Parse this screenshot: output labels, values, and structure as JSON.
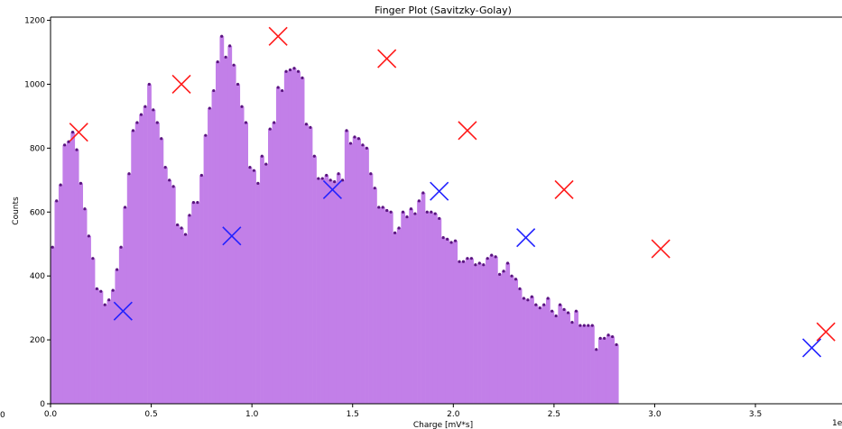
{
  "chart_data": {
    "type": "bar",
    "title": "Finger Plot (Savitzky-Golay)",
    "xlabel": "Charge [mV*s]",
    "ylabel": "Counts",
    "x_offset_label": "1e",
    "stray_label": "0",
    "xlim": [
      0.0,
      3.93
    ],
    "ylim": [
      0,
      1210
    ],
    "grid": false,
    "x_ticks": [
      {
        "value": 0.0,
        "label": "0.0"
      },
      {
        "value": 0.5,
        "label": "0.5"
      },
      {
        "value": 1.0,
        "label": "1.0"
      },
      {
        "value": 1.5,
        "label": "1.5"
      },
      {
        "value": 2.0,
        "label": "2.0"
      },
      {
        "value": 2.5,
        "label": "2.5"
      },
      {
        "value": 3.0,
        "label": "3.0"
      },
      {
        "value": 3.5,
        "label": "3.5"
      }
    ],
    "y_ticks": [
      {
        "value": 0,
        "label": "0"
      },
      {
        "value": 200,
        "label": "200"
      },
      {
        "value": 400,
        "label": "400"
      },
      {
        "value": 600,
        "label": "600"
      },
      {
        "value": 800,
        "label": "800"
      },
      {
        "value": 1000,
        "label": "1000"
      },
      {
        "value": 1200,
        "label": "1200"
      }
    ],
    "bin_width": 0.02,
    "bin_start": 0.0,
    "values": [
      490,
      635,
      685,
      810,
      820,
      850,
      795,
      690,
      610,
      525,
      455,
      360,
      352,
      310,
      325,
      355,
      420,
      490,
      615,
      720,
      855,
      880,
      905,
      930,
      1000,
      920,
      880,
      830,
      740,
      700,
      680,
      560,
      550,
      530,
      590,
      630,
      630,
      715,
      840,
      925,
      980,
      1070,
      1150,
      1085,
      1120,
      1060,
      1000,
      930,
      880,
      740,
      730,
      690,
      775,
      750,
      860,
      880,
      990,
      980,
      1040,
      1045,
      1050,
      1040,
      1020,
      875,
      865,
      775,
      705,
      705,
      715,
      700,
      695,
      720,
      700,
      855,
      815,
      835,
      830,
      810,
      800,
      720,
      675,
      615,
      615,
      605,
      600,
      535,
      550,
      600,
      585,
      610,
      595,
      635,
      660,
      600,
      600,
      595,
      580,
      520,
      515,
      505,
      510,
      445,
      445,
      455,
      455,
      435,
      440,
      435,
      455,
      465,
      460,
      405,
      415,
      440,
      400,
      390,
      360,
      330,
      325,
      335,
      310,
      300,
      310,
      330,
      290,
      275,
      310,
      295,
      285,
      255,
      290,
      245,
      245,
      245,
      245,
      170,
      205,
      205,
      215,
      210,
      185
    ],
    "peaks": [
      {
        "x": 0.14,
        "y": 850
      },
      {
        "x": 0.65,
        "y": 1000
      },
      {
        "x": 1.13,
        "y": 1150
      },
      {
        "x": 1.67,
        "y": 1080
      },
      {
        "x": 2.07,
        "y": 855
      },
      {
        "x": 2.55,
        "y": 670
      },
      {
        "x": 3.03,
        "y": 485
      },
      {
        "x": 3.85,
        "y": 225
      }
    ],
    "valleys": [
      {
        "x": 0.36,
        "y": 290
      },
      {
        "x": 0.9,
        "y": 525
      },
      {
        "x": 1.4,
        "y": 670
      },
      {
        "x": 1.93,
        "y": 665
      },
      {
        "x": 2.36,
        "y": 520
      },
      {
        "x": 3.78,
        "y": 175
      }
    ],
    "colors": {
      "bar_fill": "#c27fe8",
      "bar_edge": "#b26be0",
      "point": "#5a1480",
      "peak_marker": "#ff1a1a",
      "valley_marker": "#2222ff"
    }
  }
}
